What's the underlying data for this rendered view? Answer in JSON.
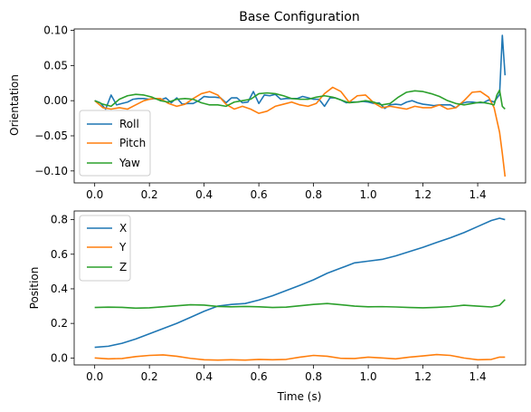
{
  "chart_data": [
    {
      "type": "line",
      "title": "Base Configuration",
      "xlabel": "",
      "ylabel": "Orientation",
      "xlim": [
        -0.075,
        1.575
      ],
      "ylim": [
        -0.117,
        0.102
      ],
      "xticks": [
        0.0,
        0.2,
        0.4,
        0.6,
        0.8,
        1.0,
        1.2,
        1.4
      ],
      "xtick_labels": [
        "0.0",
        "0.2",
        "0.4",
        "0.6",
        "0.8",
        "1.0",
        "1.2",
        "1.4"
      ],
      "yticks": [
        -0.1,
        -0.05,
        0.0,
        0.05,
        0.1
      ],
      "ytick_labels": [
        "−0.10",
        "−0.05",
        "0.00",
        "0.05",
        "0.10"
      ],
      "grid": false,
      "legend": "lower-left",
      "series": [
        {
          "name": "Roll",
          "color": "#1f77b4",
          "x": [
            0.0,
            0.02,
            0.04,
            0.06,
            0.08,
            0.1,
            0.12,
            0.14,
            0.16,
            0.18,
            0.2,
            0.22,
            0.24,
            0.26,
            0.28,
            0.3,
            0.32,
            0.34,
            0.36,
            0.38,
            0.4,
            0.42,
            0.44,
            0.46,
            0.48,
            0.5,
            0.52,
            0.54,
            0.56,
            0.58,
            0.6,
            0.62,
            0.64,
            0.66,
            0.68,
            0.7,
            0.72,
            0.74,
            0.76,
            0.78,
            0.8,
            0.82,
            0.84,
            0.86,
            0.88,
            0.9,
            0.92,
            0.94,
            0.96,
            0.98,
            1.0,
            1.02,
            1.04,
            1.06,
            1.08,
            1.1,
            1.12,
            1.14,
            1.16,
            1.18,
            1.2,
            1.22,
            1.24,
            1.26,
            1.28,
            1.3,
            1.32,
            1.34,
            1.36,
            1.38,
            1.4,
            1.42,
            1.44,
            1.46,
            1.48,
            1.49,
            1.5
          ],
          "y": [
            0.0,
            -0.003,
            -0.012,
            0.008,
            -0.006,
            -0.004,
            -0.002,
            0.002,
            0.003,
            0.003,
            0.002,
            0.003,
            0.001,
            0.004,
            -0.003,
            0.004,
            -0.005,
            -0.004,
            -0.004,
            0.0,
            0.006,
            0.005,
            0.005,
            0.004,
            -0.003,
            0.004,
            0.004,
            -0.003,
            -0.002,
            0.013,
            -0.004,
            0.008,
            0.007,
            0.009,
            0.002,
            0.003,
            0.003,
            0.003,
            0.006,
            0.004,
            0.002,
            0.002,
            -0.008,
            0.004,
            0.004,
            0.001,
            -0.003,
            -0.002,
            -0.002,
            -0.001,
            -0.002,
            -0.004,
            -0.003,
            -0.011,
            -0.006,
            -0.005,
            -0.006,
            -0.002,
            0.0,
            -0.003,
            -0.005,
            -0.006,
            -0.007,
            -0.006,
            -0.006,
            -0.006,
            -0.01,
            -0.004,
            -0.002,
            -0.002,
            -0.003,
            -0.003,
            0.001,
            -0.002,
            0.009,
            0.093,
            0.036
          ]
        },
        {
          "name": "Pitch",
          "color": "#ff7f0e",
          "x": [
            0.0,
            0.03,
            0.06,
            0.09,
            0.12,
            0.15,
            0.18,
            0.21,
            0.24,
            0.27,
            0.3,
            0.33,
            0.36,
            0.39,
            0.42,
            0.45,
            0.48,
            0.51,
            0.54,
            0.57,
            0.6,
            0.63,
            0.66,
            0.69,
            0.72,
            0.75,
            0.78,
            0.81,
            0.84,
            0.87,
            0.9,
            0.93,
            0.96,
            0.99,
            1.02,
            1.05,
            1.08,
            1.11,
            1.14,
            1.17,
            1.2,
            1.23,
            1.26,
            1.29,
            1.32,
            1.35,
            1.38,
            1.41,
            1.44,
            1.46,
            1.48,
            1.49,
            1.5
          ],
          "y": [
            0.0,
            -0.01,
            -0.012,
            -0.01,
            -0.012,
            -0.006,
            0.0,
            0.003,
            0.003,
            -0.004,
            -0.008,
            -0.005,
            0.003,
            0.01,
            0.013,
            0.008,
            -0.005,
            -0.012,
            -0.008,
            -0.012,
            -0.018,
            -0.015,
            -0.008,
            -0.005,
            -0.002,
            -0.006,
            -0.008,
            -0.004,
            0.01,
            0.019,
            0.013,
            -0.002,
            0.007,
            0.008,
            -0.003,
            -0.01,
            -0.008,
            -0.01,
            -0.012,
            -0.008,
            -0.01,
            -0.01,
            -0.006,
            -0.012,
            -0.01,
            0.0,
            0.012,
            0.013,
            0.005,
            -0.01,
            -0.045,
            -0.075,
            -0.108
          ]
        },
        {
          "name": "Yaw",
          "color": "#2ca02c",
          "x": [
            0.0,
            0.03,
            0.06,
            0.09,
            0.12,
            0.15,
            0.18,
            0.21,
            0.24,
            0.27,
            0.3,
            0.33,
            0.36,
            0.39,
            0.42,
            0.45,
            0.48,
            0.51,
            0.54,
            0.57,
            0.6,
            0.63,
            0.66,
            0.69,
            0.72,
            0.75,
            0.78,
            0.81,
            0.84,
            0.87,
            0.9,
            0.93,
            0.96,
            0.99,
            1.02,
            1.05,
            1.08,
            1.11,
            1.14,
            1.17,
            1.2,
            1.23,
            1.26,
            1.29,
            1.32,
            1.35,
            1.38,
            1.41,
            1.44,
            1.46,
            1.47,
            1.48,
            1.49,
            1.5
          ],
          "y": [
            0.0,
            -0.005,
            -0.008,
            0.002,
            0.007,
            0.009,
            0.008,
            0.005,
            0.0,
            -0.002,
            0.002,
            0.003,
            0.002,
            -0.003,
            -0.006,
            -0.006,
            -0.008,
            -0.002,
            0.0,
            0.002,
            0.01,
            0.011,
            0.01,
            0.007,
            0.003,
            0.002,
            0.002,
            0.005,
            0.007,
            0.005,
            0.001,
            -0.003,
            -0.002,
            0.0,
            -0.002,
            -0.006,
            -0.004,
            0.005,
            0.012,
            0.014,
            0.013,
            0.01,
            0.006,
            0.0,
            -0.004,
            -0.006,
            -0.004,
            -0.002,
            -0.004,
            -0.006,
            0.008,
            0.015,
            -0.008,
            -0.012
          ]
        }
      ]
    },
    {
      "type": "line",
      "title": "",
      "xlabel": "Time (s)",
      "ylabel": "Position",
      "xlim": [
        -0.075,
        1.575
      ],
      "ylim": [
        -0.04,
        0.85
      ],
      "xticks": [
        0.0,
        0.2,
        0.4,
        0.6,
        0.8,
        1.0,
        1.2,
        1.4
      ],
      "xtick_labels": [
        "0.0",
        "0.2",
        "0.4",
        "0.6",
        "0.8",
        "1.0",
        "1.2",
        "1.4"
      ],
      "yticks": [
        0.0,
        0.2,
        0.4,
        0.6,
        0.8
      ],
      "ytick_labels": [
        "0.0",
        "0.2",
        "0.4",
        "0.6",
        "0.8"
      ],
      "grid": false,
      "legend": "upper-left",
      "series": [
        {
          "name": "X",
          "color": "#1f77b4",
          "x": [
            0.0,
            0.05,
            0.1,
            0.15,
            0.2,
            0.25,
            0.3,
            0.35,
            0.4,
            0.45,
            0.5,
            0.55,
            0.6,
            0.65,
            0.7,
            0.75,
            0.8,
            0.85,
            0.9,
            0.95,
            1.0,
            1.05,
            1.1,
            1.15,
            1.2,
            1.25,
            1.3,
            1.35,
            1.4,
            1.45,
            1.48,
            1.5
          ],
          "y": [
            0.062,
            0.068,
            0.085,
            0.11,
            0.14,
            0.17,
            0.2,
            0.235,
            0.27,
            0.3,
            0.31,
            0.315,
            0.335,
            0.36,
            0.39,
            0.42,
            0.452,
            0.49,
            0.52,
            0.55,
            0.56,
            0.57,
            0.59,
            0.615,
            0.64,
            0.668,
            0.695,
            0.725,
            0.76,
            0.795,
            0.808,
            0.8
          ]
        },
        {
          "name": "Y",
          "color": "#ff7f0e",
          "x": [
            0.0,
            0.05,
            0.1,
            0.15,
            0.2,
            0.25,
            0.3,
            0.35,
            0.4,
            0.45,
            0.5,
            0.55,
            0.6,
            0.65,
            0.7,
            0.75,
            0.8,
            0.85,
            0.9,
            0.95,
            1.0,
            1.05,
            1.1,
            1.15,
            1.2,
            1.25,
            1.3,
            1.35,
            1.4,
            1.45,
            1.48,
            1.5
          ],
          "y": [
            0.0,
            -0.005,
            -0.003,
            0.008,
            0.015,
            0.018,
            0.01,
            -0.002,
            -0.01,
            -0.012,
            -0.01,
            -0.012,
            -0.008,
            -0.01,
            -0.008,
            0.005,
            0.015,
            0.01,
            -0.002,
            -0.003,
            0.005,
            0.0,
            -0.005,
            0.005,
            0.012,
            0.02,
            0.015,
            0.0,
            -0.01,
            -0.008,
            0.005,
            0.005
          ]
        },
        {
          "name": "Z",
          "color": "#2ca02c",
          "x": [
            0.0,
            0.05,
            0.1,
            0.15,
            0.2,
            0.25,
            0.3,
            0.35,
            0.4,
            0.45,
            0.5,
            0.55,
            0.6,
            0.65,
            0.7,
            0.75,
            0.8,
            0.85,
            0.9,
            0.95,
            1.0,
            1.05,
            1.1,
            1.15,
            1.2,
            1.25,
            1.3,
            1.35,
            1.4,
            1.45,
            1.48,
            1.5
          ],
          "y": [
            0.292,
            0.294,
            0.293,
            0.288,
            0.29,
            0.296,
            0.302,
            0.308,
            0.306,
            0.298,
            0.296,
            0.298,
            0.296,
            0.292,
            0.294,
            0.302,
            0.31,
            0.315,
            0.308,
            0.3,
            0.296,
            0.297,
            0.295,
            0.292,
            0.29,
            0.293,
            0.297,
            0.305,
            0.3,
            0.295,
            0.305,
            0.338
          ]
        }
      ]
    }
  ]
}
